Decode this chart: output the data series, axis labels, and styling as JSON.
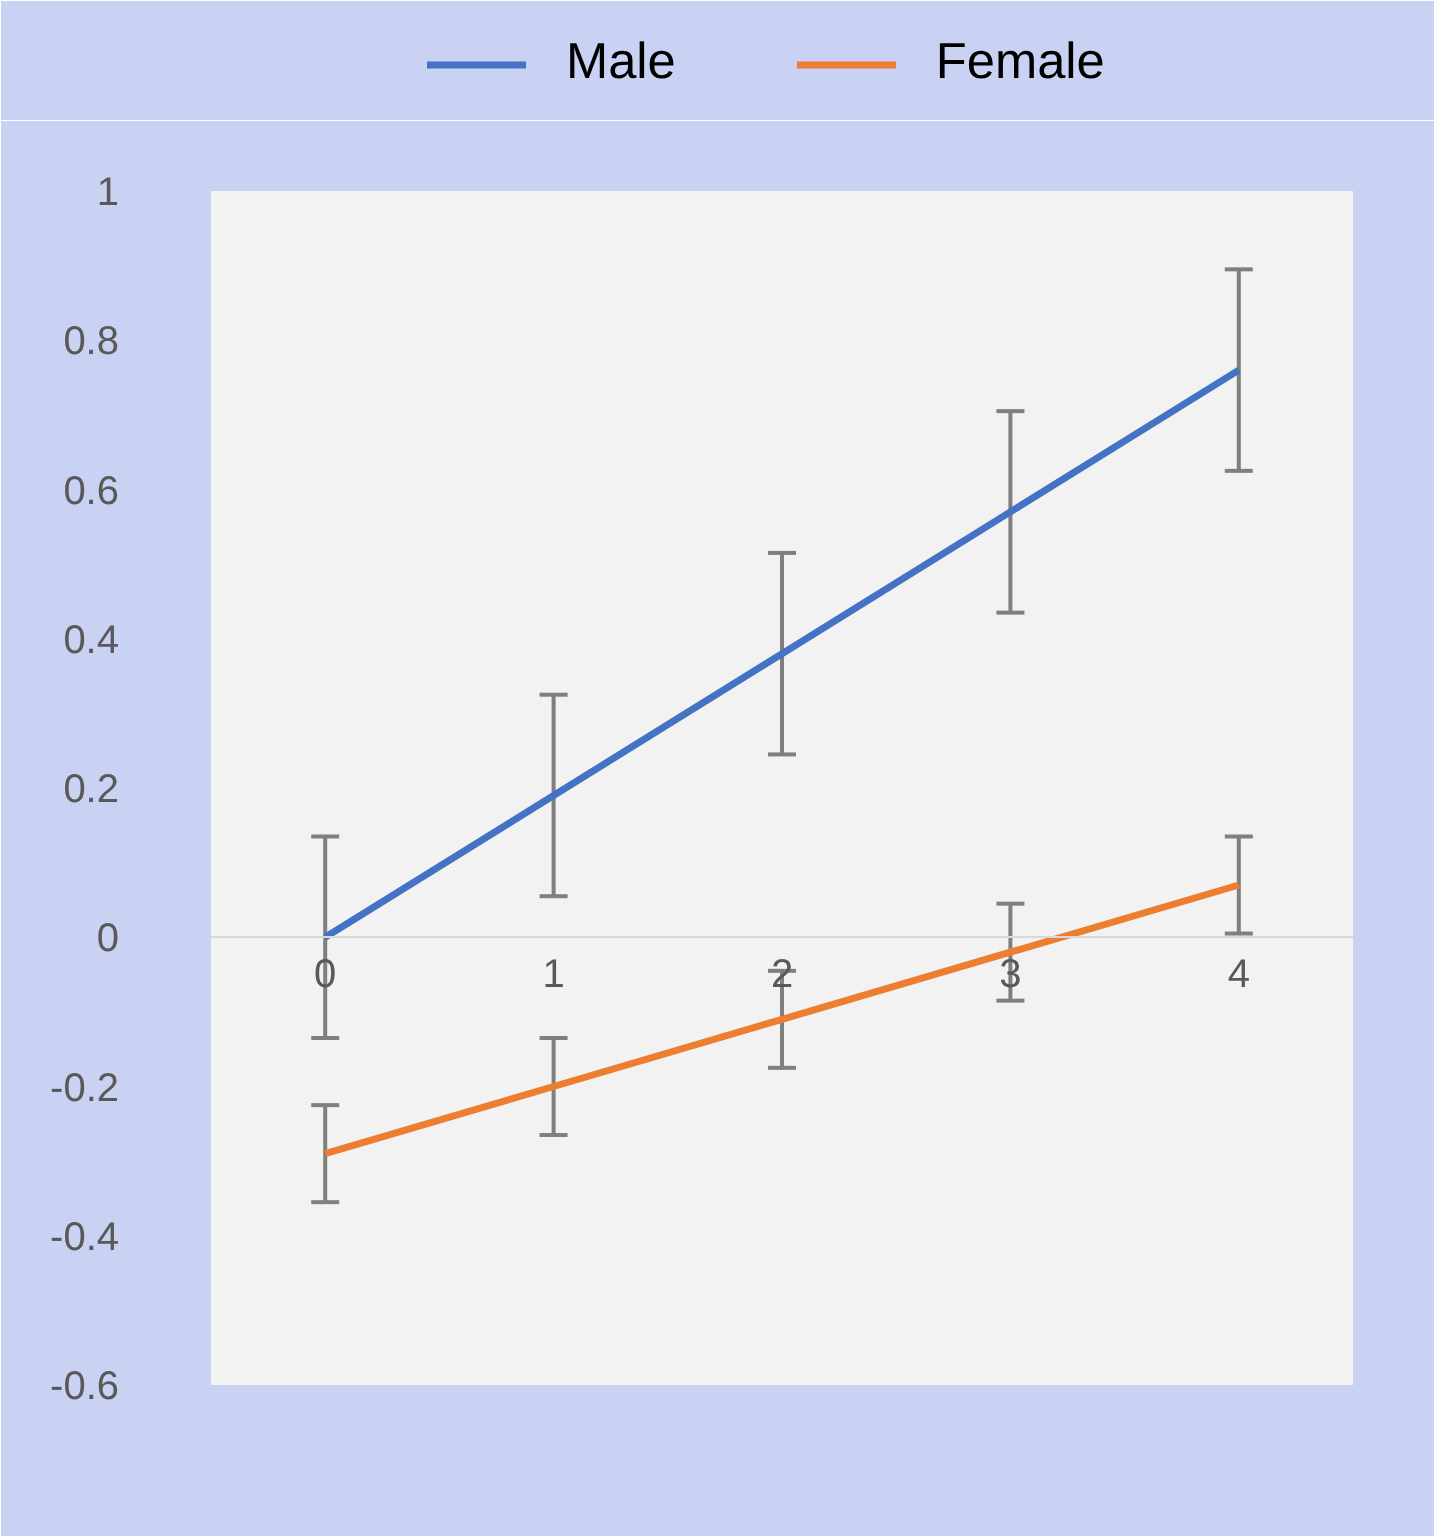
{
  "chart_data": {
    "type": "line",
    "x": [
      0,
      1,
      2,
      3,
      4
    ],
    "series": [
      {
        "name": "Male",
        "color": "#4472c4",
        "values": [
          0,
          0.19,
          0.38,
          0.57,
          0.76
        ],
        "errors": [
          0.135,
          0.135,
          0.135,
          0.135,
          0.135
        ]
      },
      {
        "name": "Female",
        "color": "#ed7d31",
        "values": [
          -0.29,
          -0.2,
          -0.11,
          -0.02,
          0.07
        ],
        "errors": [
          0.065,
          0.065,
          0.065,
          0.065,
          0.065
        ]
      }
    ],
    "xlim": [
      -0.5,
      4.5
    ],
    "xticks": [
      0,
      1,
      2,
      3,
      4
    ],
    "ylim": [
      -0.6,
      1
    ],
    "yticks": [
      {
        "value": -0.6,
        "label": "-0.6"
      },
      {
        "value": -0.4,
        "label": "-0.4"
      },
      {
        "value": -0.2,
        "label": "-0.2"
      },
      0,
      {
        "value": 0.2,
        "label": "0.2"
      },
      {
        "value": 0.4,
        "label": "0.4"
      },
      {
        "value": 0.6,
        "label": "0.6"
      },
      {
        "value": 0.8,
        "label": "0.8"
      },
      1
    ],
    "grid": false,
    "legend": "top"
  }
}
